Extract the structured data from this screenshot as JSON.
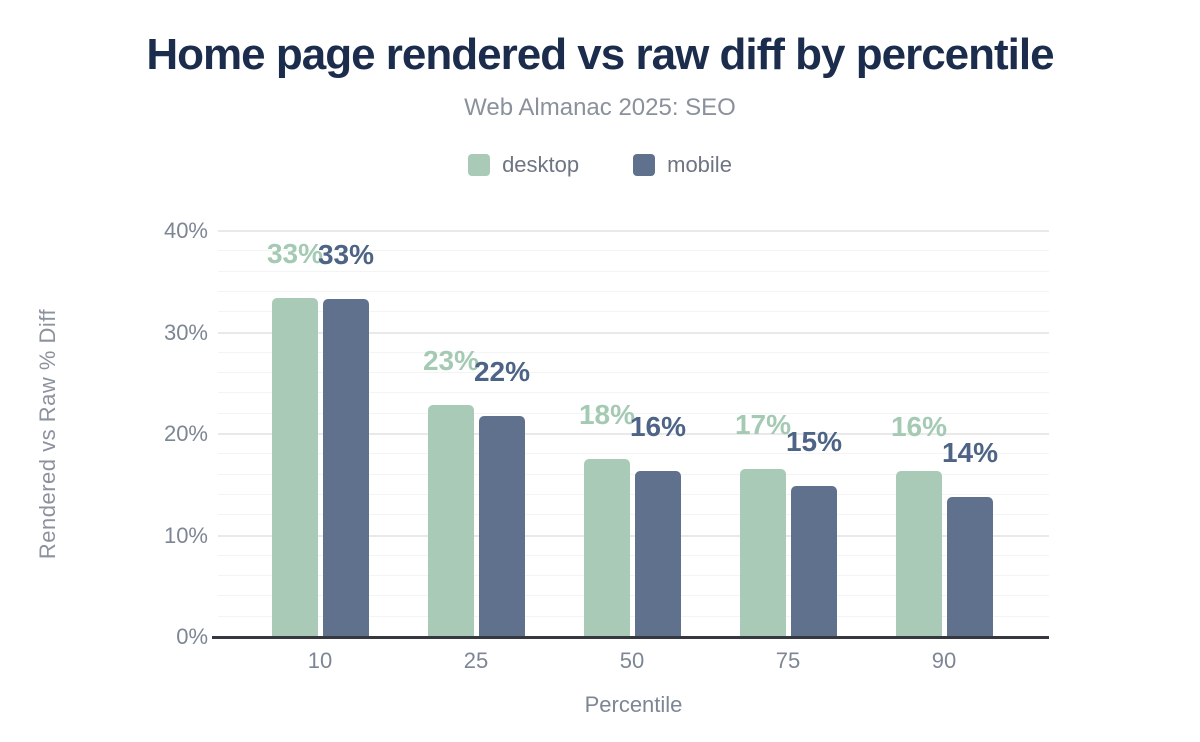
{
  "title": "Home page rendered vs raw diff by percentile",
  "subtitle": "Web Almanac 2025: SEO",
  "legend": [
    {
      "label": "desktop",
      "color": "#a8cab7"
    },
    {
      "label": "mobile",
      "color": "#5f718c"
    }
  ],
  "colors": {
    "title": "#1b2c4d",
    "axis_line": "#35383f",
    "tick_text": "#7d8694",
    "gridline_minor": "#f4f4f4",
    "gridline_major": "#e9e9e9"
  },
  "chart_data": {
    "type": "bar",
    "categories": [
      "10",
      "25",
      "50",
      "75",
      "90"
    ],
    "series": [
      {
        "name": "desktop",
        "color": "#a8cab7",
        "label_color": "#a4cab4",
        "values": [
          33.4,
          22.9,
          17.5,
          16.6,
          16.4
        ],
        "labels": [
          "33%",
          "23%",
          "18%",
          "17%",
          "16%"
        ]
      },
      {
        "name": "mobile",
        "color": "#5f718c",
        "label_color": "#4d6486",
        "values": [
          33.3,
          21.8,
          16.4,
          14.9,
          13.8
        ],
        "labels": [
          "33%",
          "22%",
          "16%",
          "15%",
          "14%"
        ]
      }
    ],
    "xlabel": "Percentile",
    "ylabel": "Rendered vs Raw % Diff",
    "ylim": [
      0,
      40
    ],
    "yticks": [
      {
        "label": "0%",
        "v": 0
      },
      {
        "label": "10%",
        "v": 10
      },
      {
        "label": "20%",
        "v": 20
      },
      {
        "label": "30%",
        "v": 30
      },
      {
        "label": "40%",
        "v": 40
      }
    ],
    "grid": {
      "minor_step": 2,
      "major_step": 10,
      "max": 40
    },
    "legend_position": "top"
  }
}
